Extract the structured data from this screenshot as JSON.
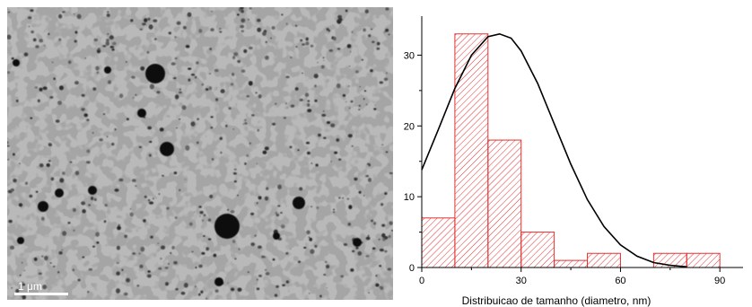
{
  "micrograph": {
    "scale_bar_label": "1 μm"
  },
  "chart_data": {
    "type": "bar",
    "bin_edges": [
      0,
      10,
      20,
      30,
      40,
      50,
      60,
      70,
      80,
      90
    ],
    "values": [
      7,
      33,
      18,
      5,
      1,
      2,
      0,
      2,
      2
    ],
    "fit_curve": {
      "kind": "gaussian",
      "x": [
        0,
        5,
        10,
        15,
        20,
        23.5,
        27,
        30,
        35,
        40,
        45,
        50,
        55,
        60,
        65,
        70,
        75,
        80
      ],
      "y": [
        13.8,
        19.5,
        25.3,
        30.0,
        32.6,
        33.0,
        32.4,
        30.6,
        26.0,
        20.3,
        14.6,
        9.6,
        5.8,
        3.2,
        1.6,
        0.7,
        0.3,
        0.1
      ]
    },
    "xlabel": "Distribuicao de tamanho (diametro, nm)",
    "ylabel": "",
    "xlim": [
      0,
      97
    ],
    "ylim": [
      0,
      35
    ],
    "xticks": [
      "0",
      "30",
      "60",
      "90"
    ],
    "yticks": [
      "0",
      "10",
      "20",
      "30"
    ],
    "bar_color": "#e53030",
    "curve_color": "#000000",
    "grid": false,
    "legend": "none"
  }
}
